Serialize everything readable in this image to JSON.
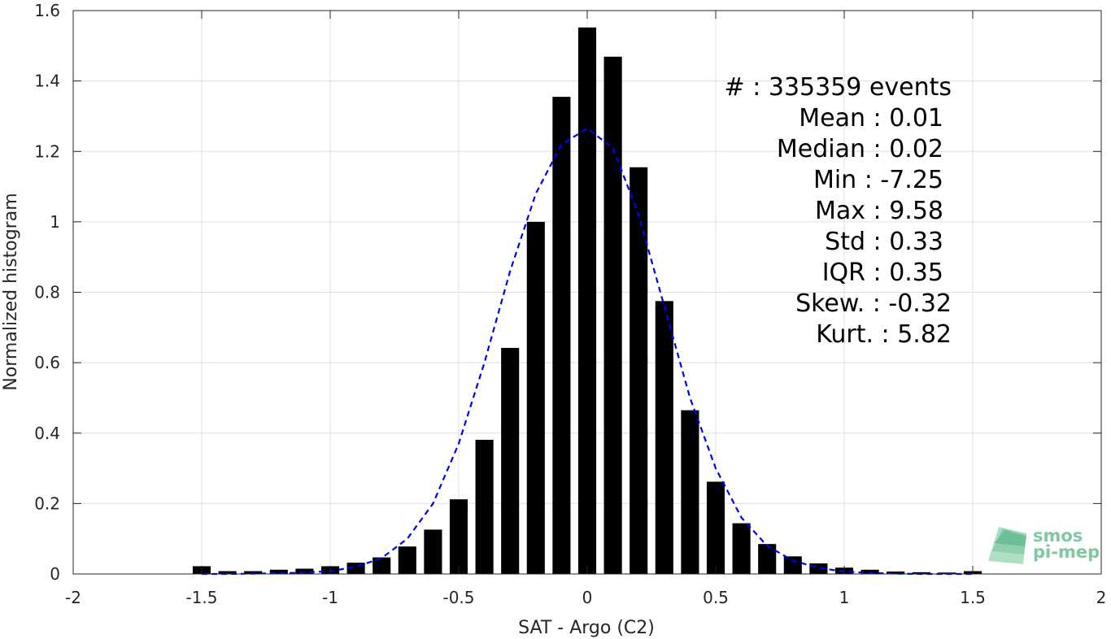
{
  "chart_data": {
    "type": "bar",
    "xlabel": "SAT - Argo (C2)",
    "ylabel": "Normalized histogram",
    "xlim": [
      -2,
      2
    ],
    "ylim": [
      0,
      1.6
    ],
    "xticks": [
      -2,
      -1.5,
      -1,
      -0.5,
      0,
      0.5,
      1,
      1.5,
      2
    ],
    "xtick_labels": [
      "-2",
      "-1.5",
      "-1",
      "-0.5",
      "0",
      "0.5",
      "1",
      "1.5",
      "2"
    ],
    "yticks": [
      0,
      0.2,
      0.4,
      0.6,
      0.8,
      1,
      1.2,
      1.4,
      1.6
    ],
    "ytick_labels": [
      "0",
      "0.2",
      "0.4",
      "0.6",
      "0.8",
      "1",
      "1.2",
      "1.4",
      "1.6"
    ],
    "grid": true,
    "bar_color": "#000000",
    "bins": [
      -1.5,
      -1.4,
      -1.3,
      -1.2,
      -1.1,
      -1.0,
      -0.9,
      -0.8,
      -0.7,
      -0.6,
      -0.5,
      -0.4,
      -0.3,
      -0.2,
      -0.1,
      0.0,
      0.1,
      0.2,
      0.3,
      0.4,
      0.5,
      0.6,
      0.7,
      0.8,
      0.9,
      1.0,
      1.1,
      1.2,
      1.3,
      1.4,
      1.5
    ],
    "bar_width": 0.07,
    "values": [
      0.022,
      0.008,
      0.008,
      0.012,
      0.015,
      0.022,
      0.032,
      0.047,
      0.078,
      0.126,
      0.212,
      0.381,
      0.642,
      1.0,
      1.355,
      1.552,
      1.469,
      1.155,
      0.775,
      0.465,
      0.262,
      0.144,
      0.085,
      0.05,
      0.03,
      0.018,
      0.012,
      0.007,
      0.005,
      0.004,
      0.008
    ],
    "fit_curve": {
      "style": "dashed",
      "color": "#0000ff",
      "x": [
        -1.5,
        -1.4,
        -1.3,
        -1.2,
        -1.1,
        -1.0,
        -0.9,
        -0.8,
        -0.7,
        -0.6,
        -0.5,
        -0.4,
        -0.3,
        -0.2,
        -0.1,
        0.0,
        0.1,
        0.2,
        0.3,
        0.4,
        0.5,
        0.6,
        0.7,
        0.8,
        0.9,
        1.0,
        1.1,
        1.2,
        1.3,
        1.4,
        1.5
      ],
      "y": [
        0.0,
        0.0,
        0.001,
        0.002,
        0.004,
        0.008,
        0.02,
        0.045,
        0.1,
        0.2,
        0.37,
        0.6,
        0.86,
        1.08,
        1.22,
        1.265,
        1.21,
        1.02,
        0.76,
        0.5,
        0.3,
        0.16,
        0.08,
        0.038,
        0.017,
        0.007,
        0.003,
        0.001,
        0.0,
        0.0,
        0.0
      ]
    },
    "annotations": [
      "#  : 335359 events",
      "Mean : 0.01",
      "Median : 0.02",
      "Min : -7.25",
      "Max : 9.58",
      "Std : 0.33",
      "IQR : 0.35",
      "Skew. : -0.32",
      "Kurt. : 5.82"
    ]
  },
  "logo": {
    "line1": "smos",
    "line2": "pi-mep",
    "color": "#7fc8a0"
  }
}
